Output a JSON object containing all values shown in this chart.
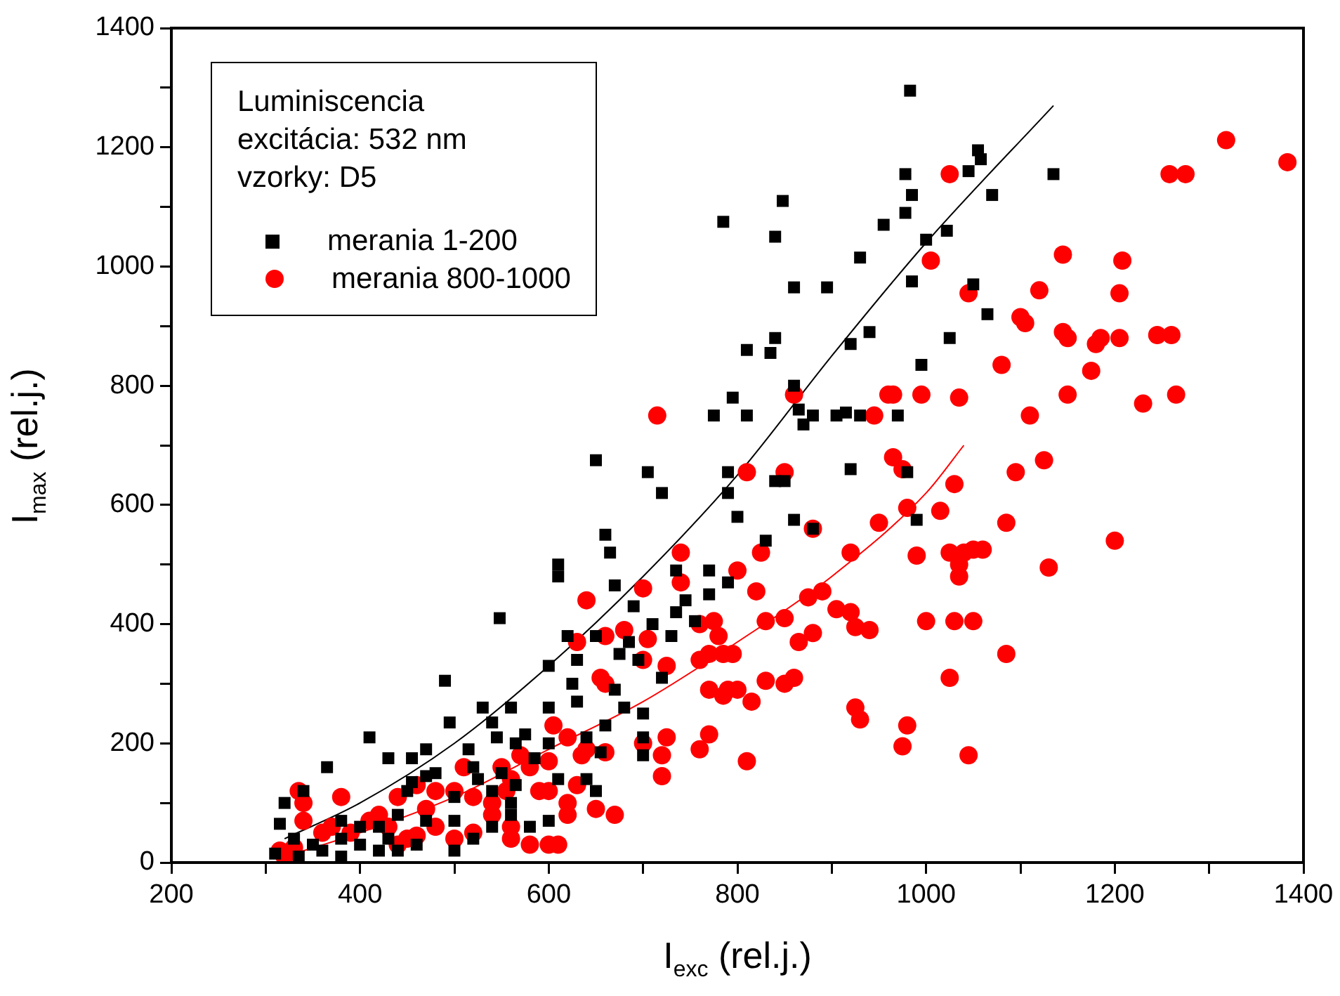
{
  "chart_data": {
    "type": "scatter",
    "xlabel": "I$_{exc}$ (rel.j.)",
    "ylabel": "I$_{max}$ (rel.j.)",
    "xlim": [
      200,
      1400
    ],
    "ylim": [
      0,
      1400
    ],
    "xticks": [
      200,
      {
        "value": 300,
        "label": null
      },
      400,
      {
        "value": 500,
        "label": null
      },
      600,
      {
        "value": 700,
        "label": null
      },
      800,
      {
        "value": 900,
        "label": null
      },
      1000,
      {
        "value": 1100,
        "label": null
      },
      1200,
      {
        "value": 1300,
        "label": null
      },
      1400
    ],
    "yticks": [
      0,
      {
        "value": 100,
        "label": null
      },
      200,
      {
        "value": 300,
        "label": null
      },
      400,
      {
        "value": 500,
        "label": null
      },
      600,
      {
        "value": 700,
        "label": null
      },
      800,
      {
        "value": 900,
        "label": null
      },
      1000,
      {
        "value": 1100,
        "label": null
      },
      1200,
      {
        "value": 1300,
        "label": null
      },
      1400
    ],
    "grid": false,
    "legend": "top left",
    "annotations": [
      "Luminiscencia",
      "excitácia: 532 nm",
      "vzorky: D5"
    ],
    "series": [
      {
        "name": "merania 1-200",
        "color": "#000000",
        "marker": "square",
        "x": [
          983,
          1055,
          1058,
          1045,
          1135,
          978,
          1070,
          985,
          978,
          955,
          1000,
          1022,
          848,
          785,
          840,
          860,
          895,
          930,
          1050,
          985,
          1065,
          940,
          920,
          835,
          840,
          810,
          1025,
          860,
          880,
          915,
          905,
          970,
          995,
          930,
          795,
          775,
          810,
          865,
          870,
          990,
          920,
          980,
          790,
          705,
          650,
          720,
          860,
          790,
          840,
          850,
          830,
          735,
          770,
          770,
          735,
          745,
          790,
          800,
          880,
          660,
          665,
          670,
          610,
          610,
          548,
          690,
          710,
          650,
          620,
          755,
          730,
          685,
          695,
          675,
          600,
          630,
          625,
          630,
          670,
          680,
          660,
          700,
          700,
          720,
          700,
          655,
          640,
          560,
          540,
          530,
          545,
          565,
          490,
          495,
          515,
          470,
          455,
          470,
          455,
          450,
          480,
          520,
          550,
          565,
          540,
          560,
          500,
          500,
          470,
          440,
          420,
          400,
          380,
          365,
          340,
          320,
          315,
          330,
          350,
          360,
          380,
          400,
          420,
          430,
          440,
          460,
          500,
          520,
          540,
          560,
          580,
          610,
          640,
          650,
          600,
          600,
          410,
          430,
          575,
          585,
          525,
          310,
          335,
          380,
          600
        ],
        "values": [
          1295,
          1195,
          1180,
          1160,
          1155,
          1155,
          1120,
          1120,
          1090,
          1070,
          1045,
          1060,
          1110,
          1075,
          1050,
          965,
          965,
          1015,
          970,
          975,
          920,
          890,
          870,
          855,
          880,
          860,
          880,
          800,
          750,
          755,
          750,
          750,
          835,
          750,
          780,
          750,
          750,
          760,
          735,
          575,
          660,
          655,
          655,
          655,
          675,
          620,
          575,
          620,
          640,
          640,
          540,
          490,
          490,
          450,
          420,
          440,
          470,
          580,
          560,
          550,
          520,
          465,
          500,
          480,
          410,
          430,
          400,
          380,
          380,
          405,
          380,
          370,
          340,
          350,
          330,
          340,
          300,
          270,
          290,
          260,
          230,
          210,
          180,
          310,
          250,
          185,
          210,
          260,
          235,
          260,
          210,
          200,
          305,
          235,
          190,
          190,
          175,
          145,
          135,
          120,
          150,
          160,
          150,
          130,
          120,
          100,
          110,
          70,
          70,
          80,
          60,
          60,
          70,
          160,
          120,
          100,
          65,
          40,
          30,
          20,
          40,
          30,
          20,
          40,
          20,
          30,
          20,
          40,
          60,
          80,
          60,
          140,
          140,
          120,
          260,
          200,
          210,
          175,
          215,
          175,
          140,
          15,
          10,
          10,
          70
        ]
      },
      {
        "name": "merania 800-1000",
        "color": "#ff0000",
        "marker": "circle",
        "x": [
          1318,
          1383,
          1258,
          1275,
          1025,
          1005,
          1145,
          1208,
          1205,
          1045,
          1105,
          1120,
          1145,
          1150,
          1180,
          1185,
          1100,
          1245,
          1260,
          1205,
          1175,
          1080,
          1150,
          1230,
          1265,
          960,
          965,
          995,
          1035,
          945,
          1110,
          715,
          860,
          810,
          965,
          975,
          1125,
          1095,
          1030,
          1015,
          980,
          1085,
          1025,
          1050,
          1060,
          1040,
          1200,
          850,
          950,
          920,
          880,
          825,
          800,
          820,
          875,
          890,
          990,
          1035,
          1035,
          1130,
          905,
          920,
          1030,
          1050,
          850,
          830,
          740,
          740,
          700,
          680,
          660,
          640,
          630,
          760,
          775,
          780,
          795,
          785,
          865,
          880,
          940,
          925,
          1000,
          1085,
          705,
          700,
          725,
          760,
          770,
          655,
          660,
          770,
          790,
          800,
          850,
          860,
          830,
          785,
          815,
          925,
          930,
          1025,
          980,
          975,
          1045,
          810,
          760,
          770,
          720,
          725,
          700,
          720,
          660,
          640,
          620,
          605,
          600,
          580,
          570,
          560,
          555,
          540,
          520,
          500,
          480,
          470,
          460,
          440,
          420,
          410,
          390,
          370,
          360,
          340,
          335,
          330,
          320,
          315,
          380,
          340,
          440,
          460,
          480,
          500,
          520,
          560,
          580,
          600,
          610,
          620,
          560,
          540,
          510,
          550,
          590,
          600,
          620,
          650,
          670,
          635,
          630,
          430,
          450
        ],
        "values": [
          1212,
          1175,
          1155,
          1155,
          1155,
          1010,
          1020,
          1010,
          955,
          955,
          905,
          960,
          890,
          880,
          870,
          880,
          915,
          885,
          885,
          880,
          825,
          835,
          785,
          770,
          785,
          785,
          785,
          785,
          780,
          750,
          750,
          750,
          785,
          655,
          680,
          660,
          675,
          655,
          635,
          590,
          595,
          570,
          520,
          525,
          525,
          520,
          540,
          655,
          570,
          520,
          560,
          520,
          490,
          455,
          445,
          455,
          515,
          500,
          480,
          495,
          425,
          420,
          405,
          405,
          410,
          405,
          520,
          470,
          460,
          390,
          380,
          440,
          370,
          400,
          405,
          380,
          350,
          350,
          370,
          385,
          390,
          395,
          405,
          350,
          375,
          340,
          330,
          340,
          350,
          310,
          300,
          290,
          290,
          290,
          300,
          310,
          305,
          280,
          270,
          260,
          240,
          310,
          230,
          195,
          180,
          170,
          190,
          215,
          180,
          210,
          200,
          145,
          185,
          190,
          210,
          230,
          170,
          160,
          180,
          140,
          120,
          100,
          110,
          120,
          120,
          90,
          130,
          110,
          80,
          70,
          50,
          60,
          50,
          70,
          120,
          25,
          10,
          20,
          110,
          100,
          30,
          45,
          60,
          40,
          50,
          60,
          30,
          30,
          30,
          80,
          40,
          80,
          160,
          160,
          120,
          120,
          100,
          90,
          80,
          180,
          130,
          60,
          40
        ]
      },
      {
        "type": "line",
        "color": "#000000",
        "marker": "none",
        "x": [
          320,
          400,
          500,
          600,
          700,
          800,
          900,
          1000,
          1135
        ],
        "values": [
          40,
          100,
          200,
          330,
          480,
          650,
          850,
          1040,
          1270
        ]
      },
      {
        "type": "line",
        "color": "#ff0000",
        "marker": "none",
        "x": [
          320,
          400,
          500,
          600,
          700,
          800,
          900,
          1000,
          1040
        ],
        "values": [
          10,
          50,
          110,
          190,
          270,
          370,
          480,
          620,
          700
        ]
      }
    ]
  }
}
